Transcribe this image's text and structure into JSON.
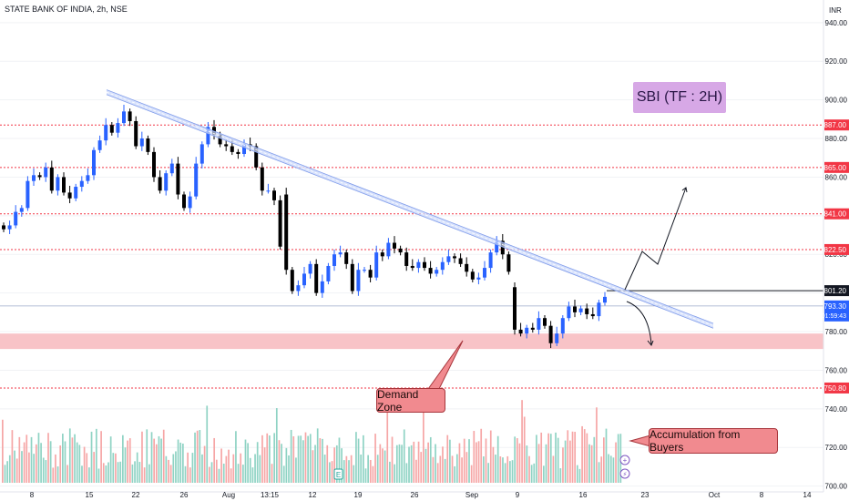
{
  "header": {
    "title": "STATE BANK OF INDIA, 2h, NSE",
    "currency": "INR"
  },
  "annotations": {
    "label": "SBI (TF : 2H)",
    "demand_zone": "Demand Zone",
    "accumulation": "Accumulation from Buyers"
  },
  "chart_data": {
    "type": "candlestick",
    "title": "STATE BANK OF INDIA, 2h, NSE",
    "y_axis": {
      "range": [
        697,
        947
      ],
      "ticks": [
        940,
        920,
        900,
        880,
        860,
        840,
        820,
        800,
        780,
        760,
        740,
        720,
        700
      ],
      "tick_labels": [
        "940.00",
        "920.00",
        "900.00",
        "880.00",
        "860.00",
        "840.00",
        "820.00",
        "800.00",
        "780.00",
        "760.00",
        "740.00",
        "720.00",
        "700.00"
      ]
    },
    "x_axis": {
      "tick_labels": [
        "8",
        "15",
        "22",
        "26",
        "Aug",
        "13:15",
        "12",
        "19",
        "26",
        "Sep",
        "9",
        "16",
        "23",
        "Oct",
        "8",
        "14"
      ]
    },
    "price_levels": [
      "887.00",
      "865.00",
      "841.00",
      "822.50",
      "750.80"
    ],
    "resistance_level": "801.20",
    "current_price": "793.30",
    "countdown": "01:59:43",
    "demand_zone": [
      771,
      779
    ],
    "trendline": {
      "from": [
        871,
        904
      ],
      "to": [
        1153,
        783
      ]
    },
    "volume_markers": [
      "E",
      "+",
      "⚡"
    ],
    "closes": [
      833,
      835,
      842,
      844,
      858,
      861,
      860,
      865,
      853,
      860,
      852,
      849,
      855,
      858,
      861,
      874,
      879,
      887,
      883,
      888,
      894,
      889,
      876,
      880,
      873,
      860,
      853,
      862,
      867,
      851,
      844,
      850,
      867,
      877,
      886,
      882,
      877,
      876,
      873,
      872,
      877,
      876,
      865,
      853,
      853,
      848,
      824,
      812,
      801,
      804,
      810,
      815,
      800,
      806,
      814,
      820,
      821,
      815,
      801,
      812,
      812,
      808,
      821,
      819,
      826,
      823,
      821,
      814,
      813,
      816,
      813,
      810,
      812,
      816,
      819,
      818,
      815,
      811,
      807,
      808,
      813,
      821,
      827,
      820,
      811,
      781,
      779,
      782,
      781,
      787,
      783,
      774,
      779,
      787,
      793,
      790,
      792,
      789,
      788,
      795,
      798
    ]
  }
}
